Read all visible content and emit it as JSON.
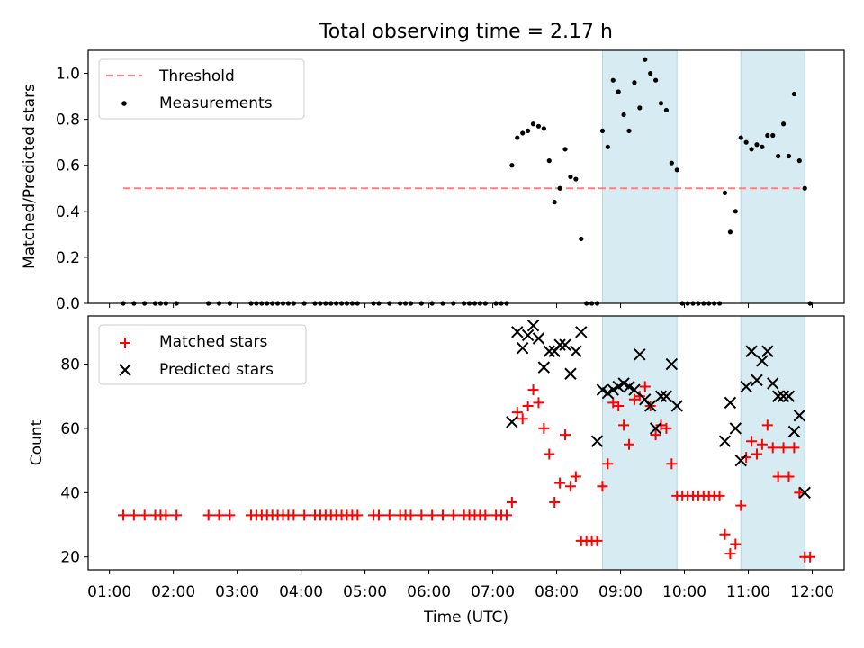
{
  "title": "Total observing time = 2.17 h",
  "xlabel": "Time (UTC)",
  "x_tick_labels": [
    "01:00",
    "02:00",
    "03:00",
    "04:00",
    "05:00",
    "06:00",
    "07:00",
    "08:00",
    "09:00",
    "10:00",
    "11:00",
    "12:00"
  ],
  "colors": {
    "threshold": "#ff7f7f",
    "measurement": "#000000",
    "matched": "#ff0000",
    "predicted": "#000000",
    "shade": "#add8e6"
  },
  "chart_data": [
    {
      "type": "scatter",
      "panel": "top",
      "ylabel": "Matched/Predicted stars",
      "xlim": [
        "00:40",
        "12:30"
      ],
      "ylim": [
        0,
        1.1
      ],
      "y_ticks": [
        "0.0",
        "0.2",
        "0.4",
        "0.6",
        "0.8",
        "1.0"
      ],
      "legend_position": "upper-left",
      "observing_windows": [
        [
          "08:43",
          "09:53"
        ],
        [
          "10:53",
          "11:53"
        ]
      ],
      "series": [
        {
          "name": "Threshold",
          "style": "dashed-line",
          "x": [
            "01:13",
            "11:53"
          ],
          "y": [
            0.5,
            0.5
          ]
        },
        {
          "name": "Measurements",
          "style": "dots",
          "points": [
            [
              "01:13",
              0
            ],
            [
              "01:23",
              0
            ],
            [
              "01:33",
              0
            ],
            [
              "01:43",
              0
            ],
            [
              "01:48",
              0
            ],
            [
              "01:53",
              0
            ],
            [
              "02:03",
              0
            ],
            [
              "02:33",
              0
            ],
            [
              "02:43",
              0
            ],
            [
              "02:53",
              0
            ],
            [
              "03:13",
              0
            ],
            [
              "03:18",
              0
            ],
            [
              "03:23",
              0
            ],
            [
              "03:28",
              0
            ],
            [
              "03:33",
              0
            ],
            [
              "03:38",
              0
            ],
            [
              "03:43",
              0
            ],
            [
              "03:48",
              0
            ],
            [
              "03:53",
              0
            ],
            [
              "04:03",
              0
            ],
            [
              "04:13",
              0
            ],
            [
              "04:18",
              0
            ],
            [
              "04:23",
              0
            ],
            [
              "04:28",
              0
            ],
            [
              "04:33",
              0
            ],
            [
              "04:38",
              0
            ],
            [
              "04:43",
              0
            ],
            [
              "04:48",
              0
            ],
            [
              "04:53",
              0
            ],
            [
              "05:08",
              0
            ],
            [
              "05:13",
              0
            ],
            [
              "05:23",
              0
            ],
            [
              "05:33",
              0
            ],
            [
              "05:38",
              0
            ],
            [
              "05:43",
              0
            ],
            [
              "05:53",
              0
            ],
            [
              "06:03",
              0
            ],
            [
              "06:13",
              0
            ],
            [
              "06:23",
              0
            ],
            [
              "06:33",
              0
            ],
            [
              "06:38",
              0
            ],
            [
              "06:43",
              0
            ],
            [
              "06:48",
              0
            ],
            [
              "06:53",
              0
            ],
            [
              "07:03",
              0
            ],
            [
              "07:08",
              0
            ],
            [
              "07:13",
              0
            ],
            [
              "07:18",
              0.6
            ],
            [
              "07:23",
              0.72
            ],
            [
              "07:28",
              0.74
            ],
            [
              "07:33",
              0.75
            ],
            [
              "07:38",
              0.78
            ],
            [
              "07:43",
              0.77
            ],
            [
              "07:48",
              0.76
            ],
            [
              "07:53",
              0.62
            ],
            [
              "07:58",
              0.44
            ],
            [
              "08:03",
              0.5
            ],
            [
              "08:08",
              0.67
            ],
            [
              "08:13",
              0.55
            ],
            [
              "08:18",
              0.54
            ],
            [
              "08:23",
              0.28
            ],
            [
              "08:28",
              0
            ],
            [
              "08:33",
              0
            ],
            [
              "08:38",
              0
            ],
            [
              "08:43",
              0.75
            ],
            [
              "08:48",
              0.68
            ],
            [
              "08:53",
              0.97
            ],
            [
              "08:58",
              0.92
            ],
            [
              "09:03",
              0.82
            ],
            [
              "09:08",
              0.75
            ],
            [
              "09:13",
              0.96
            ],
            [
              "09:18",
              0.85
            ],
            [
              "09:23",
              1.06
            ],
            [
              "09:28",
              1.0
            ],
            [
              "09:33",
              0.97
            ],
            [
              "09:38",
              0.87
            ],
            [
              "09:43",
              0.84
            ],
            [
              "09:48",
              0.61
            ],
            [
              "09:53",
              0.58
            ],
            [
              "09:58",
              0
            ],
            [
              "10:03",
              0
            ],
            [
              "10:08",
              0
            ],
            [
              "10:13",
              0
            ],
            [
              "10:18",
              0
            ],
            [
              "10:23",
              0
            ],
            [
              "10:28",
              0
            ],
            [
              "10:33",
              0
            ],
            [
              "10:38",
              0.48
            ],
            [
              "10:43",
              0.31
            ],
            [
              "10:48",
              0.4
            ],
            [
              "10:53",
              0.72
            ],
            [
              "10:58",
              0.7
            ],
            [
              "11:03",
              0.67
            ],
            [
              "11:08",
              0.69
            ],
            [
              "11:13",
              0.68
            ],
            [
              "11:18",
              0.73
            ],
            [
              "11:23",
              0.73
            ],
            [
              "11:28",
              0.64
            ],
            [
              "11:33",
              0.78
            ],
            [
              "11:38",
              0.64
            ],
            [
              "11:43",
              0.91
            ],
            [
              "11:48",
              0.62
            ],
            [
              "11:53",
              0.5
            ],
            [
              "11:58",
              0
            ]
          ]
        }
      ]
    },
    {
      "type": "scatter",
      "panel": "bottom",
      "ylabel": "Count",
      "xlim": [
        "00:40",
        "12:30"
      ],
      "ylim": [
        16,
        95
      ],
      "y_ticks": [
        "20",
        "40",
        "60",
        "80"
      ],
      "legend_position": "upper-left",
      "observing_windows": [
        [
          "08:43",
          "09:53"
        ],
        [
          "10:53",
          "11:53"
        ]
      ],
      "series": [
        {
          "name": "Matched stars",
          "style": "plus",
          "points": [
            [
              "01:13",
              33
            ],
            [
              "01:23",
              33
            ],
            [
              "01:33",
              33
            ],
            [
              "01:43",
              33
            ],
            [
              "01:48",
              33
            ],
            [
              "01:53",
              33
            ],
            [
              "02:03",
              33
            ],
            [
              "02:33",
              33
            ],
            [
              "02:43",
              33
            ],
            [
              "02:53",
              33
            ],
            [
              "03:13",
              33
            ],
            [
              "03:18",
              33
            ],
            [
              "03:23",
              33
            ],
            [
              "03:28",
              33
            ],
            [
              "03:33",
              33
            ],
            [
              "03:38",
              33
            ],
            [
              "03:43",
              33
            ],
            [
              "03:48",
              33
            ],
            [
              "03:53",
              33
            ],
            [
              "04:03",
              33
            ],
            [
              "04:13",
              33
            ],
            [
              "04:18",
              33
            ],
            [
              "04:23",
              33
            ],
            [
              "04:28",
              33
            ],
            [
              "04:33",
              33
            ],
            [
              "04:38",
              33
            ],
            [
              "04:43",
              33
            ],
            [
              "04:48",
              33
            ],
            [
              "04:53",
              33
            ],
            [
              "05:08",
              33
            ],
            [
              "05:13",
              33
            ],
            [
              "05:23",
              33
            ],
            [
              "05:33",
              33
            ],
            [
              "05:38",
              33
            ],
            [
              "05:43",
              33
            ],
            [
              "05:53",
              33
            ],
            [
              "06:03",
              33
            ],
            [
              "06:13",
              33
            ],
            [
              "06:23",
              33
            ],
            [
              "06:33",
              33
            ],
            [
              "06:38",
              33
            ],
            [
              "06:43",
              33
            ],
            [
              "06:48",
              33
            ],
            [
              "06:53",
              33
            ],
            [
              "07:03",
              33
            ],
            [
              "07:08",
              33
            ],
            [
              "07:13",
              33
            ],
            [
              "07:18",
              37
            ],
            [
              "07:23",
              65
            ],
            [
              "07:28",
              63
            ],
            [
              "07:33",
              67
            ],
            [
              "07:38",
              72
            ],
            [
              "07:43",
              68
            ],
            [
              "07:48",
              60
            ],
            [
              "07:53",
              52
            ],
            [
              "07:58",
              37
            ],
            [
              "08:03",
              43
            ],
            [
              "08:08",
              58
            ],
            [
              "08:13",
              42
            ],
            [
              "08:18",
              45
            ],
            [
              "08:23",
              25
            ],
            [
              "08:28",
              25
            ],
            [
              "08:33",
              25
            ],
            [
              "08:38",
              25
            ],
            [
              "08:43",
              42
            ],
            [
              "08:48",
              49
            ],
            [
              "08:53",
              68
            ],
            [
              "08:58",
              67
            ],
            [
              "09:03",
              61
            ],
            [
              "09:08",
              55
            ],
            [
              "09:13",
              69
            ],
            [
              "09:18",
              70
            ],
            [
              "09:23",
              73
            ],
            [
              "09:28",
              67
            ],
            [
              "09:33",
              58
            ],
            [
              "09:38",
              61
            ],
            [
              "09:43",
              60
            ],
            [
              "09:48",
              49
            ],
            [
              "09:53",
              39
            ],
            [
              "09:58",
              39
            ],
            [
              "10:03",
              39
            ],
            [
              "10:08",
              39
            ],
            [
              "10:13",
              39
            ],
            [
              "10:18",
              39
            ],
            [
              "10:23",
              39
            ],
            [
              "10:28",
              39
            ],
            [
              "10:33",
              39
            ],
            [
              "10:38",
              27
            ],
            [
              "10:43",
              21
            ],
            [
              "10:48",
              24
            ],
            [
              "10:53",
              36
            ],
            [
              "10:58",
              51
            ],
            [
              "11:03",
              56
            ],
            [
              "11:08",
              52
            ],
            [
              "11:13",
              55
            ],
            [
              "11:18",
              61
            ],
            [
              "11:23",
              54
            ],
            [
              "11:28",
              45
            ],
            [
              "11:33",
              54
            ],
            [
              "11:38",
              45
            ],
            [
              "11:43",
              54
            ],
            [
              "11:48",
              40
            ],
            [
              "11:53",
              20
            ],
            [
              "11:58",
              20
            ]
          ]
        },
        {
          "name": "Predicted stars",
          "style": "x",
          "points": [
            [
              "07:18",
              62
            ],
            [
              "07:23",
              90
            ],
            [
              "07:28",
              85
            ],
            [
              "07:33",
              89
            ],
            [
              "07:38",
              92
            ],
            [
              "07:43",
              88
            ],
            [
              "07:48",
              79
            ],
            [
              "07:53",
              84
            ],
            [
              "07:58",
              84
            ],
            [
              "08:03",
              86
            ],
            [
              "08:08",
              86
            ],
            [
              "08:13",
              77
            ],
            [
              "08:18",
              84
            ],
            [
              "08:23",
              90
            ],
            [
              "08:38",
              56
            ],
            [
              "08:43",
              72
            ],
            [
              "08:48",
              71
            ],
            [
              "08:53",
              72
            ],
            [
              "08:58",
              73
            ],
            [
              "09:03",
              74
            ],
            [
              "09:08",
              73
            ],
            [
              "09:13",
              72
            ],
            [
              "09:18",
              83
            ],
            [
              "09:23",
              69
            ],
            [
              "09:28",
              67
            ],
            [
              "09:33",
              60
            ],
            [
              "09:38",
              70
            ],
            [
              "09:43",
              70
            ],
            [
              "09:48",
              80
            ],
            [
              "09:53",
              67
            ],
            [
              "10:38",
              56
            ],
            [
              "10:43",
              68
            ],
            [
              "10:48",
              60
            ],
            [
              "10:53",
              50
            ],
            [
              "10:58",
              73
            ],
            [
              "11:03",
              84
            ],
            [
              "11:08",
              75
            ],
            [
              "11:13",
              81
            ],
            [
              "11:18",
              84
            ],
            [
              "11:23",
              74
            ],
            [
              "11:28",
              70
            ],
            [
              "11:33",
              70
            ],
            [
              "11:38",
              70
            ],
            [
              "11:43",
              59
            ],
            [
              "11:48",
              64
            ],
            [
              "11:53",
              40
            ]
          ]
        }
      ]
    }
  ]
}
